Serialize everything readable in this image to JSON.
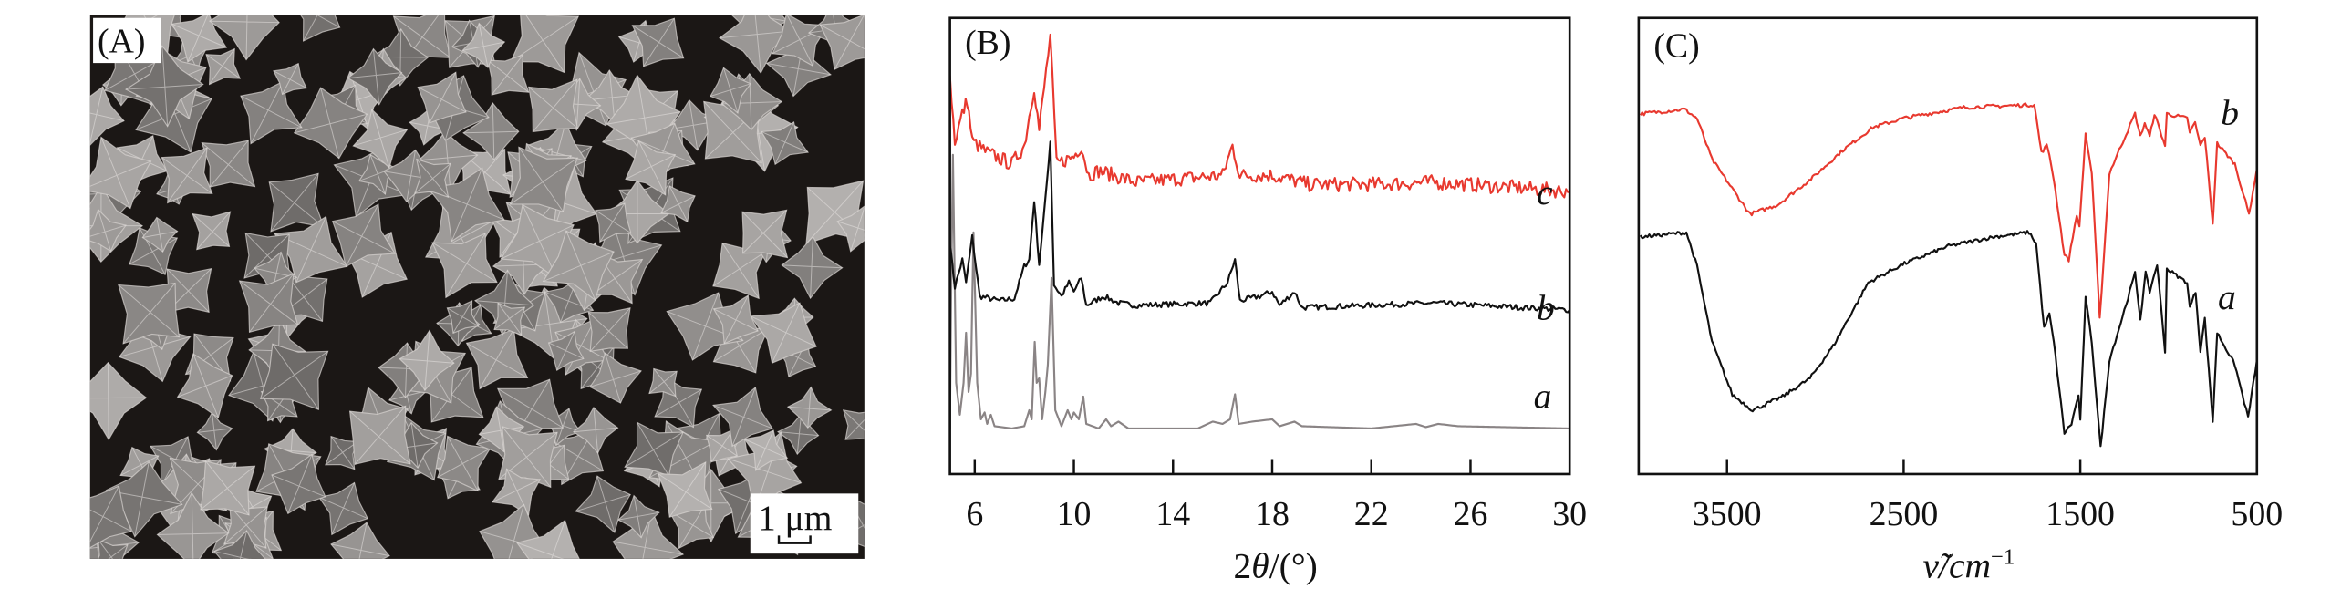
{
  "panel_a": {
    "label": "(A)",
    "scale_bar": "1 μm",
    "background": "#1b1715",
    "crystal_color": "#8e8a88"
  },
  "chart_data": [
    {
      "type": "line",
      "panel_label": "(B)",
      "title": "",
      "xlabel_parts": [
        "2",
        "θ",
        "/(°)"
      ],
      "ylabel": "",
      "xlim": [
        5,
        30
      ],
      "ylim": [
        0,
        100
      ],
      "xticks": [
        "6",
        "10",
        "14",
        "18",
        "22",
        "26",
        "30"
      ],
      "xtick_values": [
        6,
        10,
        14,
        18,
        22,
        26,
        30
      ],
      "grid": false,
      "series": [
        {
          "name": "a",
          "color": "#8a8485",
          "noise": 0,
          "points": [
            [
              5,
              10
            ],
            [
              5.05,
              40
            ],
            [
              5.12,
              70
            ],
            [
              5.25,
              20
            ],
            [
              5.4,
              13
            ],
            [
              5.55,
              20
            ],
            [
              5.65,
              31
            ],
            [
              5.75,
              18
            ],
            [
              5.85,
              22
            ],
            [
              5.95,
              53
            ],
            [
              6.1,
              20
            ],
            [
              6.25,
              12
            ],
            [
              6.4,
              13.5
            ],
            [
              6.5,
              11
            ],
            [
              6.65,
              13
            ],
            [
              6.8,
              10.5
            ],
            [
              7.5,
              10
            ],
            [
              8.0,
              10.5
            ],
            [
              8.2,
              14
            ],
            [
              8.3,
              12
            ],
            [
              8.42,
              29
            ],
            [
              8.5,
              20
            ],
            [
              8.6,
              21
            ],
            [
              8.72,
              12
            ],
            [
              8.85,
              18
            ],
            [
              8.95,
              24
            ],
            [
              9.1,
              43
            ],
            [
              9.25,
              14
            ],
            [
              9.5,
              10.5
            ],
            [
              9.75,
              14
            ],
            [
              9.9,
              12
            ],
            [
              10.0,
              13.5
            ],
            [
              10.2,
              12
            ],
            [
              10.38,
              17
            ],
            [
              10.5,
              11
            ],
            [
              11.0,
              10
            ],
            [
              11.3,
              12
            ],
            [
              11.5,
              10.5
            ],
            [
              11.8,
              11.5
            ],
            [
              12.2,
              10
            ],
            [
              15,
              10
            ],
            [
              15.6,
              11.5
            ],
            [
              16.0,
              11
            ],
            [
              16.3,
              12
            ],
            [
              16.5,
              17.5
            ],
            [
              16.65,
              11
            ],
            [
              17.2,
              11.5
            ],
            [
              18,
              12
            ],
            [
              18.3,
              10.5
            ],
            [
              18.9,
              11.5
            ],
            [
              19.2,
              10.5
            ],
            [
              22,
              10
            ],
            [
              23.8,
              11
            ],
            [
              24.2,
              10.3
            ],
            [
              24.7,
              11
            ],
            [
              25.5,
              10.5
            ],
            [
              30,
              10
            ]
          ]
        },
        {
          "name": "b",
          "color": "#111111",
          "noise": 0.6,
          "points": [
            [
              5,
              50.6
            ],
            [
              5.2,
              41
            ],
            [
              5.5,
              47
            ],
            [
              5.65,
              42
            ],
            [
              5.9,
              52
            ],
            [
              6.2,
              39
            ],
            [
              7.0,
              38
            ],
            [
              7.6,
              38.5
            ],
            [
              8.0,
              45.6
            ],
            [
              8.2,
              47
            ],
            [
              8.4,
              60
            ],
            [
              8.6,
              46
            ],
            [
              8.85,
              60
            ],
            [
              9.05,
              73
            ],
            [
              9.2,
              41.5
            ],
            [
              9.5,
              39
            ],
            [
              9.8,
              42
            ],
            [
              10.0,
              40
            ],
            [
              10.3,
              43
            ],
            [
              10.5,
              37
            ],
            [
              11.2,
              39
            ],
            [
              11.8,
              37.5
            ],
            [
              12.5,
              37
            ],
            [
              15.5,
              37.5
            ],
            [
              16.2,
              42
            ],
            [
              16.5,
              47
            ],
            [
              16.7,
              38
            ],
            [
              17.5,
              39
            ],
            [
              18,
              40
            ],
            [
              18.3,
              37
            ],
            [
              18.9,
              40
            ],
            [
              19.2,
              36.5
            ],
            [
              24.5,
              37.5
            ],
            [
              30,
              36
            ]
          ]
        },
        {
          "name": "c",
          "color": "#e8392f",
          "noise": 1.6,
          "points": [
            [
              5,
              87
            ],
            [
              5.2,
              73
            ],
            [
              5.5,
              79
            ],
            [
              5.7,
              82
            ],
            [
              5.9,
              73
            ],
            [
              6.5,
              70.5
            ],
            [
              7.5,
              68
            ],
            [
              8.0,
              72
            ],
            [
              8.4,
              85
            ],
            [
              8.6,
              75.5
            ],
            [
              8.8,
              84.6
            ],
            [
              9.05,
              96
            ],
            [
              9.3,
              68
            ],
            [
              10.0,
              69.7
            ],
            [
              10.3,
              72
            ],
            [
              10.6,
              65.5
            ],
            [
              11,
              66.5
            ],
            [
              12.5,
              64
            ],
            [
              16,
              65.5
            ],
            [
              16.4,
              72
            ],
            [
              16.7,
              65.5
            ],
            [
              18,
              65.5
            ],
            [
              19.5,
              63.5
            ],
            [
              22,
              63.5
            ],
            [
              24.5,
              64
            ],
            [
              30,
              62
            ]
          ]
        }
      ],
      "curve_labels": [
        "c",
        "b",
        "a"
      ]
    },
    {
      "type": "line",
      "panel_label": "(C)",
      "title": "",
      "xlabel_main": "ν̃/cm",
      "xlabel_sup": "−1",
      "ylabel": "",
      "xlim": [
        4000,
        500
      ],
      "ylim": [
        0,
        100
      ],
      "xticks": [
        "3500",
        "2500",
        "1500",
        "500"
      ],
      "xtick_values": [
        3500,
        2500,
        1500,
        500
      ],
      "grid": false,
      "series": [
        {
          "name": "b",
          "color": "#e8392f",
          "noise": 0.4,
          "points": [
            [
              3990,
              79
            ],
            [
              3740,
              80
            ],
            [
              3670,
              78
            ],
            [
              3585,
              69
            ],
            [
              3370,
              57
            ],
            [
              3215,
              59
            ],
            [
              3015,
              65
            ],
            [
              2845,
              71
            ],
            [
              2675,
              76
            ],
            [
              2505,
              78
            ],
            [
              2160,
              80.4
            ],
            [
              1760,
              81
            ],
            [
              1720,
              70.5
            ],
            [
              1690,
              72
            ],
            [
              1675,
              70
            ],
            [
              1650,
              64.7
            ],
            [
              1590,
              48
            ],
            [
              1565,
              47
            ],
            [
              1520,
              57
            ],
            [
              1505,
              54
            ],
            [
              1470,
              74.6
            ],
            [
              1435,
              66
            ],
            [
              1390,
              34
            ],
            [
              1335,
              66
            ],
            [
              1280,
              71
            ],
            [
              1190,
              79
            ],
            [
              1160,
              74
            ],
            [
              1135,
              77
            ],
            [
              1107,
              74
            ],
            [
              1080,
              79
            ],
            [
              1020,
              72
            ],
            [
              1010,
              79
            ],
            [
              895,
              78
            ],
            [
              880,
              75
            ],
            [
              850,
              77
            ],
            [
              820,
              72
            ],
            [
              795,
              74
            ],
            [
              750,
              55
            ],
            [
              725,
              72.5
            ],
            [
              625,
              68
            ],
            [
              545,
              57
            ],
            [
              500,
              67
            ]
          ]
        },
        {
          "name": "a",
          "color": "#111111",
          "noise": 0.4,
          "points": [
            [
              3990,
              52
            ],
            [
              3730,
              53
            ],
            [
              3670,
              45.6
            ],
            [
              3585,
              29
            ],
            [
              3470,
              17.4
            ],
            [
              3355,
              14
            ],
            [
              3185,
              17
            ],
            [
              3030,
              21
            ],
            [
              2900,
              28
            ],
            [
              2700,
              42
            ],
            [
              2505,
              46
            ],
            [
              2245,
              50
            ],
            [
              1990,
              52
            ],
            [
              1790,
              53
            ],
            [
              1750,
              50.6
            ],
            [
              1705,
              32
            ],
            [
              1675,
              35
            ],
            [
              1650,
              29
            ],
            [
              1590,
              9
            ],
            [
              1550,
              11
            ],
            [
              1510,
              17.4
            ],
            [
              1500,
              11.6
            ],
            [
              1470,
              38.6
            ],
            [
              1435,
              29
            ],
            [
              1385,
              5.8
            ],
            [
              1335,
              25
            ],
            [
              1280,
              32
            ],
            [
              1190,
              44
            ],
            [
              1160,
              34
            ],
            [
              1130,
              44
            ],
            [
              1107,
              40
            ],
            [
              1065,
              46
            ],
            [
              1020,
              27
            ],
            [
              1010,
              45
            ],
            [
              895,
              42
            ],
            [
              880,
              36.5
            ],
            [
              847,
              40
            ],
            [
              820,
              27
            ],
            [
              795,
              34
            ],
            [
              750,
              11.6
            ],
            [
              725,
              31
            ],
            [
              625,
              24
            ],
            [
              550,
              12.4
            ],
            [
              500,
              25
            ]
          ]
        }
      ],
      "curve_labels": [
        "b",
        "a"
      ]
    }
  ]
}
